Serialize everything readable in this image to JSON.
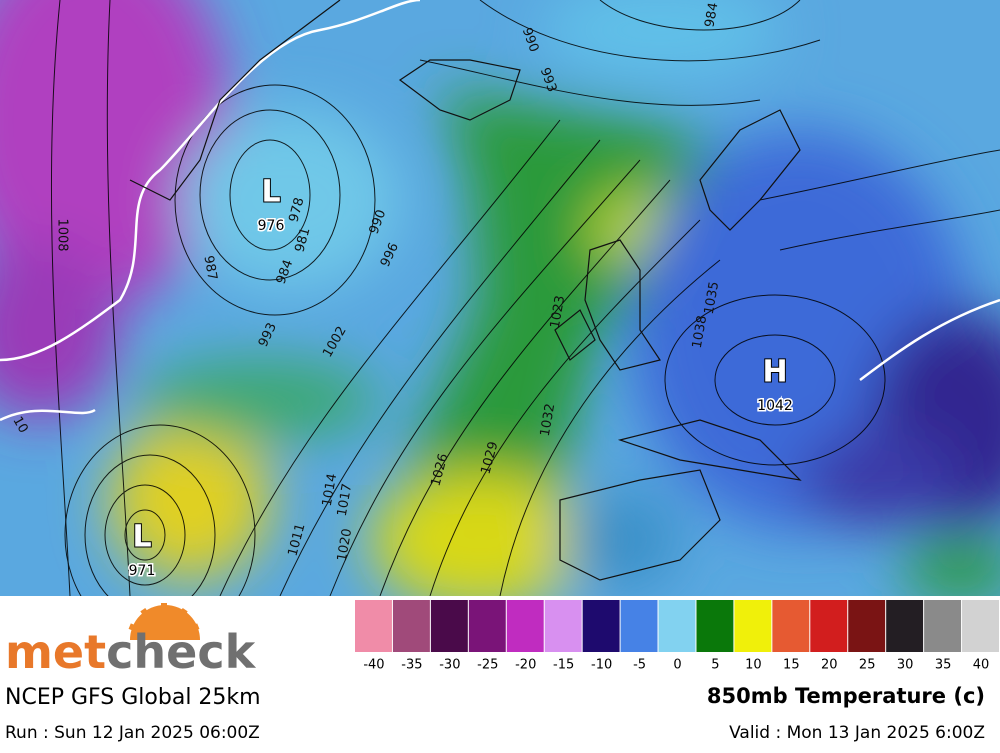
{
  "map": {
    "pressure_centers": [
      {
        "symbol": "L",
        "value": "976"
      },
      {
        "symbol": "L",
        "value": "971"
      },
      {
        "symbol": "H",
        "value": "1042"
      }
    ],
    "isobar_labels": [
      "990",
      "993",
      "978",
      "981",
      "984",
      "987",
      "990",
      "996",
      "993",
      "1002",
      "1008",
      "1011",
      "1014",
      "1017",
      "1020",
      "1026",
      "1029",
      "1032",
      "1035",
      "1038",
      "1023",
      "984",
      "10"
    ]
  },
  "legend": {
    "colors": [
      "#f08ca8",
      "#a04a7a",
      "#4a0a4a",
      "#7a1478",
      "#c02cc0",
      "#d890f0",
      "#1e0a6e",
      "#4682e6",
      "#82d2f0",
      "#0a780a",
      "#f0f00a",
      "#e65a32",
      "#d21e1e",
      "#7a1414",
      "#231e23",
      "#8a8a8a",
      "#d2d2d2"
    ],
    "ticks": [
      "-40",
      "-35",
      "-30",
      "-25",
      "-20",
      "-15",
      "-10",
      "-5",
      "0",
      "5",
      "10",
      "15",
      "20",
      "25",
      "30",
      "35",
      "40"
    ]
  },
  "branding": {
    "logo": [
      "met",
      "check"
    ]
  },
  "footer": {
    "model": "NCEP GFS Global 25km",
    "run": "Run : Sun 12 Jan 2025 06:00Z",
    "product": "850mb Temperature (c)",
    "valid": "Valid : Mon 13 Jan 2025 6:00Z"
  }
}
